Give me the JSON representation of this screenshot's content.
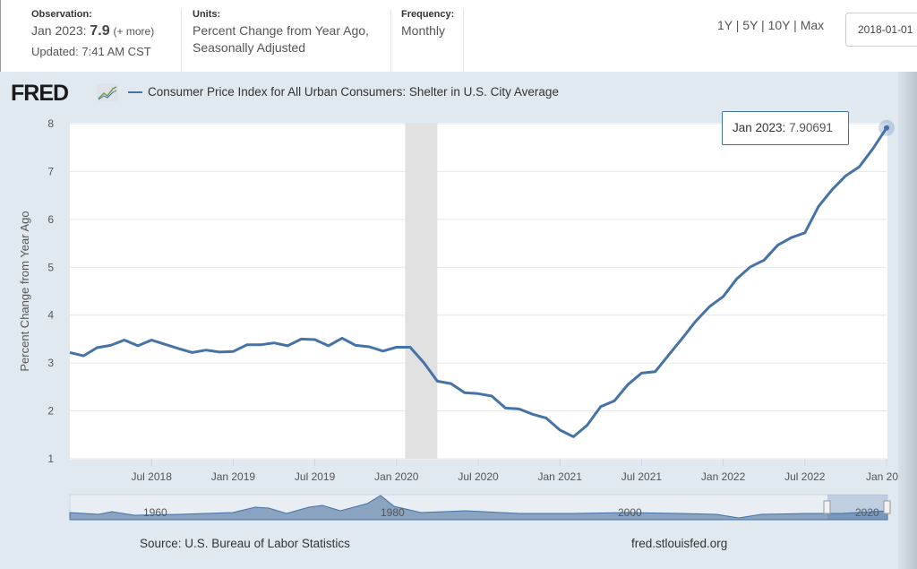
{
  "header": {
    "observation_label": "Observation:",
    "observation_date": "Jan 2023:",
    "observation_value": "7.9",
    "observation_more": "(+ more)",
    "updated": "Updated: 7:41 AM CST",
    "units_label": "Units:",
    "units_line1": "Percent Change from Year Ago,",
    "units_line2": "Seasonally Adjusted",
    "frequency_label": "Frequency:",
    "frequency_value": "Monthly",
    "ranges": [
      "1Y",
      "5Y",
      "10Y",
      "Max"
    ],
    "start_date": "2018-01-01"
  },
  "logo": "FRED",
  "tooltip": {
    "date": "Jan 2023:",
    "value": "7.90691"
  },
  "footer": {
    "source": "Source: U.S. Bureau of Labor Statistics",
    "url": "fred.stlouisfed.org"
  },
  "navigator": {
    "labels": [
      "1960",
      "1980",
      "2000",
      "2020"
    ]
  },
  "colors": {
    "line": "#4572a7",
    "recession": "#e1e1e1",
    "bg": "#e1e9f0"
  },
  "chart_data": {
    "type": "line",
    "title": "Consumer Price Index for All Urban Consumers: Shelter in U.S. City Average",
    "ylabel": "Percent Change from Year Ago",
    "ylim": [
      1,
      8
    ],
    "yticks": [
      1,
      2,
      3,
      4,
      5,
      6,
      7,
      8
    ],
    "xticks": [
      {
        "label": "Jul 2018",
        "i": 6
      },
      {
        "label": "Jan 2019",
        "i": 12
      },
      {
        "label": "Jul 2019",
        "i": 18
      },
      {
        "label": "Jan 2020",
        "i": 24
      },
      {
        "label": "Jul 2020",
        "i": 30
      },
      {
        "label": "Jan 2021",
        "i": 36
      },
      {
        "label": "Jul 2021",
        "i": 42
      },
      {
        "label": "Jan 2022",
        "i": 48
      },
      {
        "label": "Jul 2022",
        "i": 54
      },
      {
        "label": "Jan 20...",
        "i": 60
      }
    ],
    "x_start": "2018-01",
    "x_end": "2023-01",
    "recession": {
      "start_index": 25,
      "end_index": 27
    },
    "values": [
      3.22,
      3.15,
      3.32,
      3.37,
      3.48,
      3.36,
      3.48,
      3.39,
      3.3,
      3.22,
      3.27,
      3.23,
      3.24,
      3.38,
      3.38,
      3.42,
      3.36,
      3.5,
      3.49,
      3.36,
      3.52,
      3.37,
      3.34,
      3.25,
      3.33,
      3.33,
      3.01,
      2.62,
      2.57,
      2.38,
      2.36,
      2.31,
      2.06,
      2.04,
      1.93,
      1.85,
      1.6,
      1.46,
      1.7,
      2.09,
      2.21,
      2.55,
      2.79,
      2.82,
      3.17,
      3.52,
      3.88,
      4.18,
      4.39,
      4.76,
      5.01,
      5.15,
      5.46,
      5.62,
      5.72,
      6.27,
      6.62,
      6.91,
      7.1,
      7.48,
      7.91
    ]
  }
}
